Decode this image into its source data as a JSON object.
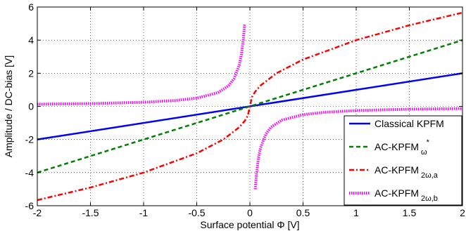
{
  "chart_data": {
    "type": "line",
    "xlabel": "Surface potential Φ [V]",
    "ylabel": "Amplitude / DC-bias [V]",
    "xlim": [
      -2,
      2
    ],
    "ylim": [
      -6,
      6
    ],
    "xticks": [
      -2,
      -1.5,
      -1,
      -0.5,
      0,
      0.5,
      1,
      1.5,
      2
    ],
    "yticks": [
      -6,
      -4,
      -2,
      0,
      2,
      4,
      6
    ],
    "xtick_labels": [
      "-2",
      "-1.5",
      "-1",
      "-0.5",
      "0",
      "0.5",
      "1",
      "1.5",
      "2"
    ],
    "ytick_labels": [
      "-6",
      "-4",
      "-2",
      "0",
      "2",
      "4",
      "6"
    ],
    "grid": true,
    "legend_position": "bottom-right",
    "series": [
      {
        "name": "Classical KPFM",
        "name_main": "Classical KPFM",
        "name_sub": "",
        "name_sup": "",
        "color": "#0000ff",
        "style": "solid",
        "x": [
          -2,
          2
        ],
        "y": [
          -2,
          2
        ]
      },
      {
        "name": "AC-KPFM ω*",
        "name_main": "AC-KPFM",
        "name_sub": "ω",
        "name_sup": "*",
        "color": "#008000",
        "style": "dashed",
        "x": [
          -2,
          2
        ],
        "y": [
          -4,
          4
        ]
      },
      {
        "name": "AC-KPFM 2ω,a",
        "name_main": "AC-KPFM",
        "name_sub": "2ω,a",
        "name_sup": "",
        "color": "#ff0000",
        "style": "dashdot",
        "x": [
          -2,
          -1.5,
          -1,
          -0.5,
          -0.25,
          -0.1,
          -0.05,
          -0.02,
          0,
          0.02,
          0.05,
          0.1,
          0.25,
          0.5,
          1,
          1.5,
          2
        ],
        "y": [
          -5.66,
          -4.9,
          -4.0,
          -2.83,
          -2.0,
          -1.26,
          -0.89,
          -0.57,
          0,
          0.57,
          0.89,
          1.26,
          2.0,
          2.83,
          4.0,
          4.9,
          5.66
        ]
      },
      {
        "name": "AC-KPFM 2ω,b",
        "name_main": "AC-KPFM",
        "name_sub": "2ω,b",
        "name_sup": "",
        "color": "#ff00ff",
        "style": "dotted",
        "segments": [
          {
            "x": [
              -2,
              -1.5,
              -1,
              -0.7,
              -0.5,
              -0.3,
              -0.2,
              -0.15,
              -0.1,
              -0.08,
              -0.06,
              -0.05
            ],
            "y": [
              0.13,
              0.17,
              0.25,
              0.36,
              0.5,
              0.83,
              1.25,
              1.67,
              2.5,
              3.13,
              4.17,
              5.0
            ]
          },
          {
            "x": [
              0.05,
              0.06,
              0.08,
              0.1,
              0.15,
              0.2,
              0.3,
              0.5,
              0.7,
              1,
              1.5,
              2
            ],
            "y": [
              -5.0,
              -4.17,
              -3.13,
              -2.5,
              -1.67,
              -1.25,
              -0.83,
              -0.5,
              -0.36,
              -0.25,
              -0.17,
              -0.13
            ]
          }
        ]
      }
    ]
  }
}
